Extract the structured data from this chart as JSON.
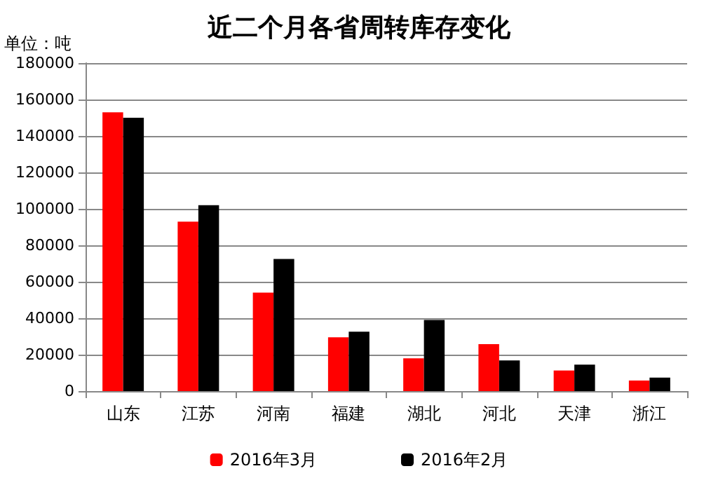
{
  "chart_data": {
    "type": "bar",
    "title": "近二个月各省周转库存变化",
    "ylabel": "单位：吨",
    "categories": [
      "山东",
      "江苏",
      "河南",
      "福建",
      "湖北",
      "河北",
      "天津",
      "浙江"
    ],
    "series": [
      {
        "name": "2016年3月",
        "color": "#ff0000",
        "values": [
          153000,
          93000,
          54000,
          29500,
          18000,
          25800,
          11300,
          5800
        ]
      },
      {
        "name": "2016年2月",
        "color": "#000000",
        "values": [
          150000,
          102000,
          72500,
          32600,
          39000,
          16800,
          14500,
          7400
        ]
      }
    ],
    "ylim": [
      0,
      180000
    ],
    "yticks": [
      0,
      20000,
      40000,
      60000,
      80000,
      100000,
      120000,
      140000,
      160000,
      180000
    ],
    "grid": "y",
    "legend": "bottom"
  }
}
